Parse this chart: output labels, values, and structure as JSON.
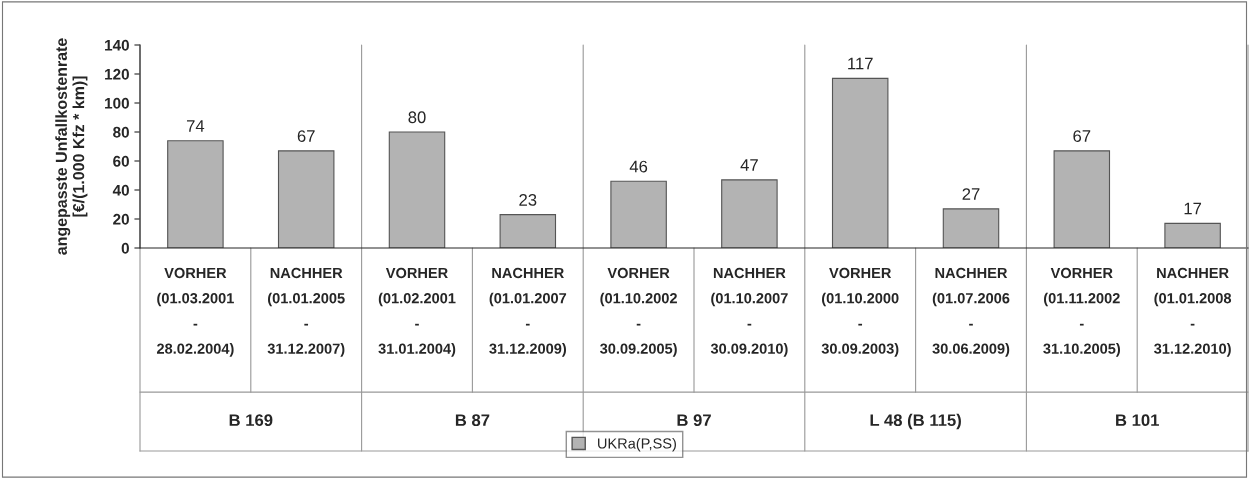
{
  "chart_data": {
    "type": "bar",
    "ylabel": "angepasste Unfallkostenrate\n[€/(1.000 Kfz * km)]",
    "categories": [
      "VORHER\n(01.03.2001\n-\n28.02.2004)",
      "NACHHER\n(01.01.2005\n-\n31.12.2007)",
      "VORHER\n(01.02.2001\n-\n31.01.2004)",
      "NACHHER\n(01.01.2007\n-\n31.12.2009)",
      "VORHER\n(01.10.2002\n-\n30.09.2005)",
      "NACHHER\n(01.10.2007\n-\n30.09.2010)",
      "VORHER\n(01.10.2000\n-\n30.09.2003)",
      "NACHHER\n(01.07.2006\n-\n30.06.2009)",
      "VORHER\n(01.11.2002\n-\n31.10.2005)",
      "NACHHER\n(01.01.2008\n-\n31.12.2010)"
    ],
    "series": [
      {
        "name": "UKRa(P,SS)",
        "color": "#b3b3b3",
        "values": [
          74,
          67,
          80,
          23,
          46,
          47,
          117,
          27,
          67,
          17
        ]
      }
    ],
    "annotations": [
      "B 169",
      "B 87",
      "B 97",
      "L 48 (B 115)",
      "B 101"
    ],
    "ylim": [
      0,
      140
    ],
    "yticks": [
      0,
      20,
      40,
      60,
      80,
      100,
      120,
      140
    ],
    "data_labels": true,
    "legend": "bottom",
    "grid": false
  }
}
